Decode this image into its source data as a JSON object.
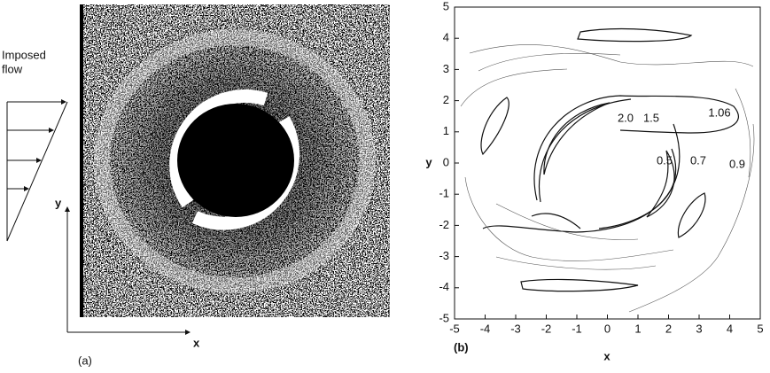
{
  "panel_a": {
    "flow_label_1": "Imposed",
    "flow_label_2": "flow",
    "ylabel": "y",
    "xlabel": "x",
    "caption": "(a)"
  },
  "panel_b": {
    "caption": "(b)",
    "xlabel": "x",
    "ylabel": "y",
    "xlim": [
      -5,
      5
    ],
    "ylim": [
      -5,
      5
    ],
    "xticks": [
      -5,
      -4,
      -3,
      -2,
      -1,
      0,
      1,
      2,
      3,
      4,
      5
    ],
    "yticks": [
      -5,
      -4,
      -3,
      -2,
      -1,
      0,
      1,
      2,
      3,
      4,
      5
    ],
    "contour_labels": [
      "2.0",
      "1.5",
      "1.06",
      "0.5",
      "0.7",
      "0.9"
    ]
  }
}
